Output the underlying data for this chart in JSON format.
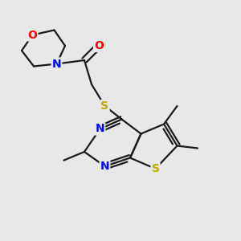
{
  "bg_color": "#e8e8e8",
  "atom_colors": {
    "N": "#0000ff",
    "O": "#ff0000",
    "S": "#bbaa00"
  },
  "bond_color": "#1a1a1a",
  "lw": 1.6
}
